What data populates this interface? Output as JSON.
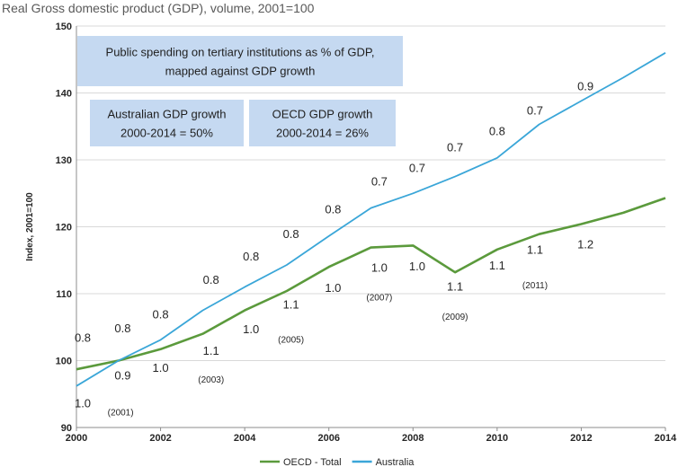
{
  "chart_data": {
    "type": "line",
    "title": "Real Gross domestic product (GDP), volume, 2001=100",
    "ylabel": "Index, 2001=100",
    "xlabel": "",
    "xlim": [
      2000,
      2014
    ],
    "ylim": [
      90,
      150
    ],
    "x_ticks": [
      2000,
      2002,
      2004,
      2006,
      2008,
      2010,
      2012,
      2014
    ],
    "y_ticks": [
      90,
      100,
      110,
      120,
      130,
      140,
      150
    ],
    "grid": "horizontal",
    "legend_position": "bottom",
    "x": [
      2000,
      2001,
      2002,
      2003,
      2004,
      2005,
      2006,
      2007,
      2008,
      2009,
      2010,
      2011,
      2012,
      2013,
      2014
    ],
    "series": [
      {
        "name": "OECD - Total",
        "color": "#5b9a3c",
        "values": [
          98.7,
          100.0,
          101.7,
          104.0,
          107.5,
          110.4,
          114.0,
          116.9,
          117.2,
          113.2,
          116.6,
          118.9,
          120.4,
          122.1,
          124.3
        ]
      },
      {
        "name": "Australia",
        "color": "#3aa6d8",
        "values": [
          96.2,
          100.0,
          103.1,
          107.5,
          111.0,
          114.3,
          118.6,
          122.8,
          125.0,
          127.5,
          130.3,
          135.3,
          138.8,
          142.3,
          146.0
        ]
      }
    ],
    "annotations": [
      {
        "text": "0.8",
        "x": 2000.15,
        "y": 102.8
      },
      {
        "text": "1.0",
        "x": 2000.15,
        "y": 93.0
      },
      {
        "text": "(2001)",
        "x": 2001.05,
        "y": 91.8,
        "small": true
      },
      {
        "text": "0.8",
        "x": 2001.1,
        "y": 104.2
      },
      {
        "text": "0.9",
        "x": 2001.1,
        "y": 97.2
      },
      {
        "text": "0.8",
        "x": 2002.0,
        "y": 106.3
      },
      {
        "text": "1.0",
        "x": 2002.0,
        "y": 98.3
      },
      {
        "text": "0.8",
        "x": 2003.2,
        "y": 111.5
      },
      {
        "text": "1.1",
        "x": 2003.2,
        "y": 100.9
      },
      {
        "text": "(2003)",
        "x": 2003.2,
        "y": 96.7,
        "small": true
      },
      {
        "text": "0.8",
        "x": 2004.15,
        "y": 115.0
      },
      {
        "text": "1.0",
        "x": 2004.15,
        "y": 104.1
      },
      {
        "text": "0.8",
        "x": 2005.1,
        "y": 118.3
      },
      {
        "text": "1.1",
        "x": 2005.1,
        "y": 107.8
      },
      {
        "text": "(2005)",
        "x": 2005.1,
        "y": 102.7,
        "small": true
      },
      {
        "text": "0.8",
        "x": 2006.1,
        "y": 122.0
      },
      {
        "text": "1.0",
        "x": 2006.1,
        "y": 110.3
      },
      {
        "text": "0.7",
        "x": 2007.2,
        "y": 126.2
      },
      {
        "text": "1.0",
        "x": 2007.2,
        "y": 113.3
      },
      {
        "text": "(2007)",
        "x": 2007.2,
        "y": 109.0,
        "small": true
      },
      {
        "text": "0.7",
        "x": 2008.1,
        "y": 128.2
      },
      {
        "text": "1.0",
        "x": 2008.1,
        "y": 113.5
      },
      {
        "text": "0.7",
        "x": 2009.0,
        "y": 131.3
      },
      {
        "text": "1.1",
        "x": 2009.0,
        "y": 110.5
      },
      {
        "text": "(2009)",
        "x": 2009.0,
        "y": 106.1,
        "small": true
      },
      {
        "text": "0.8",
        "x": 2010.0,
        "y": 133.7
      },
      {
        "text": "1.1",
        "x": 2010.0,
        "y": 113.6
      },
      {
        "text": "0.7",
        "x": 2010.9,
        "y": 136.8
      },
      {
        "text": "1.1",
        "x": 2010.9,
        "y": 116.0
      },
      {
        "text": "(2011)",
        "x": 2010.9,
        "y": 110.8,
        "small": true
      },
      {
        "text": "0.9",
        "x": 2012.1,
        "y": 140.4
      },
      {
        "text": "1.2",
        "x": 2012.1,
        "y": 116.8
      }
    ],
    "boxes": [
      {
        "lines": [
          "Public spending on tertiary institutions as % of GDP,",
          "mapped against GDP growth"
        ]
      },
      {
        "lines": [
          "Australian GDP growth",
          "2000-2014 = 50%"
        ]
      },
      {
        "lines": [
          "OECD GDP growth",
          "2000-2014 = 26%"
        ]
      }
    ],
    "box_color": "#c5d9f1"
  }
}
